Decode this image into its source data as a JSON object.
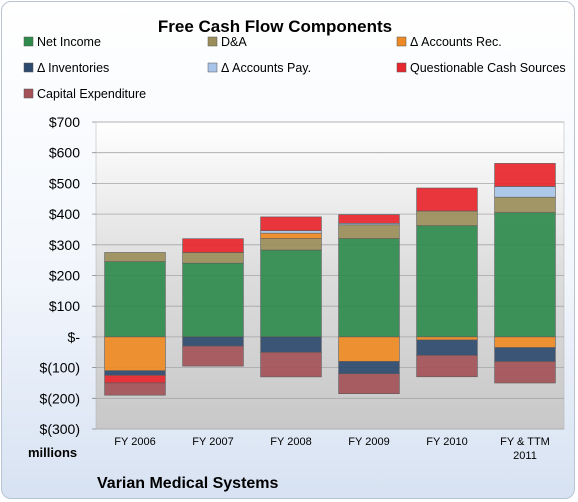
{
  "chart_data": {
    "type": "bar",
    "stacked": true,
    "title": "Free Cash Flow Components",
    "unit_label": "millions",
    "company": "Varian Medical Systems",
    "categories": [
      [
        "FY 2006"
      ],
      [
        "FY 2007"
      ],
      [
        "FY 2008"
      ],
      [
        "FY 2009"
      ],
      [
        "FY 2010"
      ],
      [
        "FY & TTM",
        "2011"
      ]
    ],
    "ylim": [
      -300,
      700
    ],
    "yticks": [
      700,
      600,
      500,
      400,
      300,
      200,
      100,
      0,
      -100,
      -200,
      -300
    ],
    "ytick_labels": [
      "$700",
      "$600",
      "$500",
      "$400",
      "$300",
      "$200",
      "$100",
      "$-",
      "$(100)",
      "$(200)",
      "$(300)"
    ],
    "grid": true,
    "legend_position": "top",
    "series": [
      {
        "name": "Net Income",
        "color": "#2e8b4c",
        "values": [
          245,
          240,
          283,
          320,
          362,
          405
        ]
      },
      {
        "name": "D&A",
        "color": "#9b8e5a",
        "values": [
          30,
          35,
          37,
          45,
          48,
          50
        ]
      },
      {
        "name": "Δ Accounts Rec.",
        "color": "#ee8a24",
        "values": [
          -110,
          0,
          18,
          -80,
          -10,
          -35
        ]
      },
      {
        "name": "Δ Inventories",
        "color": "#2c4a6e",
        "values": [
          -15,
          -30,
          -50,
          -40,
          -50,
          -45
        ]
      },
      {
        "name": "Δ Accounts Pay.",
        "color": "#a8c4e8",
        "values": [
          0,
          0,
          8,
          5,
          0,
          35
        ]
      },
      {
        "name": "Questionable Cash Sources",
        "color": "#e8262d",
        "values": [
          -25,
          45,
          45,
          28,
          75,
          75
        ]
      },
      {
        "name": "Capital Expenditure",
        "color": "#a45258",
        "values": [
          -40,
          -65,
          -80,
          -65,
          -70,
          -70
        ]
      }
    ]
  }
}
